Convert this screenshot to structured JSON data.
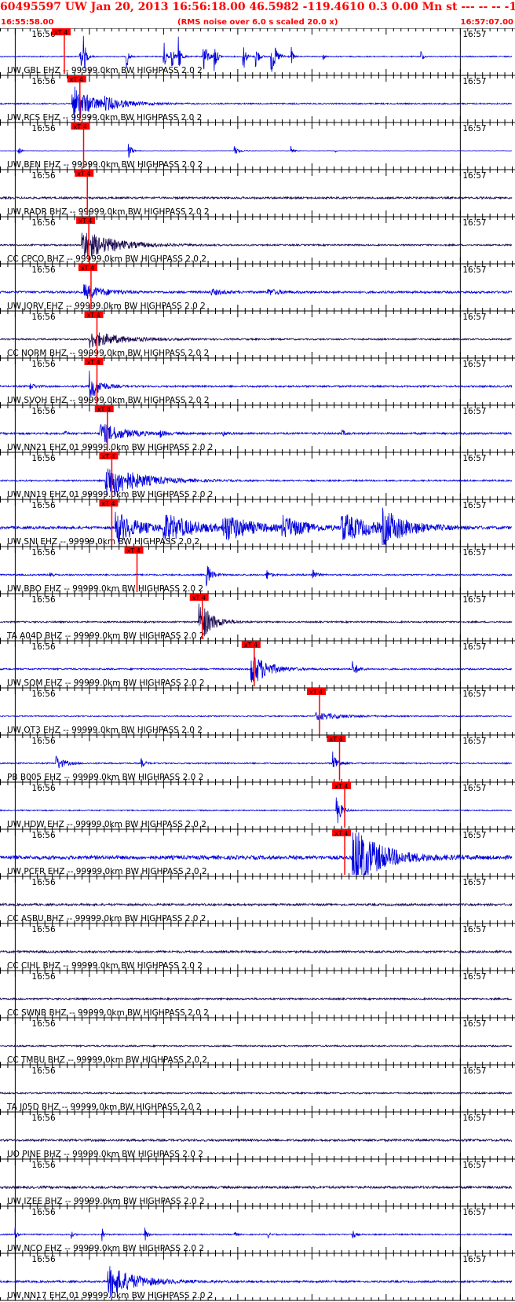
{
  "header": {
    "title": "60495597 UW Jan 20, 2013 16:56:18.00   46.5982 -119.4610  0.3 0.00 Mn st --- -- --  -1",
    "start_time": "16:55:58.00",
    "scale_note": "(RMS noise over 6.0 s scaled 20.0 x)",
    "end_time": "16:57:07.00"
  },
  "pick_label": "xT 4",
  "time_labels": {
    "left": "16:56",
    "right": "16:57"
  },
  "colors": {
    "blue": "#0000dd",
    "dark": "#1a0850",
    "red": "#ff0000"
  },
  "chart_data": {
    "type": "line",
    "x_range": [
      "16:55:58.00",
      "16:57:07.00"
    ],
    "grid": false,
    "series": [
      {
        "name": "UW GBL EHZ -- 99999.0km BW  HIGHPASS  2.0  2",
        "pick_s": 7.4,
        "color": "blue",
        "noise": 0.1,
        "events": [
          [
            10.7,
            0.3,
            4
          ],
          [
            11.2,
            0.3,
            4
          ],
          [
            17.0,
            0.2,
            4
          ],
          [
            22.0,
            0.3,
            4
          ],
          [
            23.0,
            0.3,
            4
          ],
          [
            24.0,
            0.3,
            4
          ],
          [
            27.3,
            0.5,
            4
          ],
          [
            28.8,
            0.3,
            4
          ],
          [
            32.7,
            0.3,
            4
          ],
          [
            34.4,
            0.3,
            4
          ],
          [
            36.5,
            0.6,
            4
          ],
          [
            39.2,
            0.2,
            2.5
          ],
          [
            43.5,
            0.2,
            1
          ],
          [
            56.7,
            0.2,
            2
          ]
        ]
      },
      {
        "name": "UW RCS EHZ -- 99999.0km BW  HIGHPASS  2.0  2",
        "pick_s": 9.5,
        "color": "blue",
        "noise": 0.12,
        "events": [
          [
            9.7,
            2.5,
            3.5
          ],
          [
            14.0,
            3.0,
            0.8
          ]
        ]
      },
      {
        "name": "UW BEN EHZ -- 99999.0km BW  HIGHPASS  2.0  2",
        "pick_s": 10.0,
        "color": "blue",
        "noise": 0.03,
        "events": [
          [
            2.4,
            0.3,
            1
          ],
          [
            17.3,
            0.4,
            1.8
          ],
          [
            31.5,
            0.6,
            1
          ],
          [
            39.2,
            0.3,
            1
          ],
          [
            45.2,
            0.1,
            0.4
          ]
        ]
      },
      {
        "name": "UW RADR BHZ -- 99999.0km BW  HIGHPASS  2.0  2",
        "pick_s": 10.5,
        "color": "dark",
        "noise": 0.18,
        "events": []
      },
      {
        "name": "CC CPCO BHZ -- 99999.0km BW  HIGHPASS  2.0  2",
        "pick_s": 10.7,
        "color": "dark",
        "noise": 0.14,
        "events": [
          [
            11.0,
            4.0,
            2.8
          ]
        ]
      },
      {
        "name": "UW JORV EHZ -- 99999.0km BW  HIGHPASS  2.0  2",
        "pick_s": 11.0,
        "color": "blue",
        "noise": 0.2,
        "events": [
          [
            11.3,
            2.5,
            1.4
          ],
          [
            28.3,
            1.5,
            0.6
          ],
          [
            36.0,
            1.5,
            0.6
          ]
        ]
      },
      {
        "name": "CC NORM BHZ -- 99999.0km BW  HIGHPASS  2.0  2",
        "pick_s": 11.8,
        "color": "dark",
        "noise": 0.14,
        "events": [
          [
            12.0,
            4.0,
            1.6
          ]
        ]
      },
      {
        "name": "UW SVOH EHZ -- 99999.0km BW  HIGHPASS  2.0  2",
        "pick_s": 11.8,
        "color": "blue",
        "noise": 0.16,
        "events": [
          [
            4.0,
            0.5,
            0.8
          ],
          [
            12.0,
            1.2,
            3.2
          ]
        ]
      },
      {
        "name": "UW NN21 EHZ 01 99999.0km BW  HIGHPASS  2.0  2",
        "pick_s": 13.2,
        "color": "blue",
        "noise": 0.18,
        "events": [
          [
            13.4,
            3.0,
            2.0
          ],
          [
            8.5,
            0.3,
            0.8
          ],
          [
            21.5,
            0.4,
            0.8
          ],
          [
            30.0,
            0.4,
            0.7
          ],
          [
            46.0,
            0.4,
            0.7
          ]
        ]
      },
      {
        "name": "UW NN19 EHZ 01 99999.0km BW  HIGHPASS  2.0  2",
        "pick_s": 13.8,
        "color": "blue",
        "noise": 0.14,
        "events": [
          [
            14.2,
            4.0,
            3.5
          ]
        ]
      },
      {
        "name": "UW SNI EHZ -- 99999.0km BW  HIGHPASS  2.0  2",
        "pick_s": 13.8,
        "color": "blue",
        "noise": 0.25,
        "events": [
          [
            15.5,
            3.0,
            3.0
          ],
          [
            22.0,
            4.0,
            2.5
          ],
          [
            30.0,
            3.5,
            2.5
          ],
          [
            38.0,
            3.0,
            2.0
          ],
          [
            46.0,
            4.0,
            2.5
          ],
          [
            51.5,
            3.0,
            3.0
          ]
        ]
      },
      {
        "name": "UW BBO EHZ -- 99999.0km BW  HIGHPASS  2.0  2",
        "pick_s": 17.2,
        "color": "blue",
        "noise": 0.14,
        "events": [
          [
            27.8,
            0.6,
            2.5
          ],
          [
            35.8,
            0.4,
            1.5
          ],
          [
            42.0,
            0.4,
            1.8
          ],
          [
            6.7,
            0.3,
            1
          ]
        ]
      },
      {
        "name": "TA A04D BHZ -- 99999.0km BW  HIGHPASS  2.0  2",
        "pick_s": 26.0,
        "color": "dark",
        "noise": 0.14,
        "events": [
          [
            26.8,
            1.5,
            4.5
          ]
        ]
      },
      {
        "name": "UW SQM EHZ -- 99999.0km BW  HIGHPASS  2.0  2",
        "pick_s": 33.0,
        "color": "blue",
        "noise": 0.14,
        "events": [
          [
            33.8,
            2.0,
            3.5
          ],
          [
            47.5,
            0.6,
            1.5
          ]
        ]
      },
      {
        "name": "UW OT3 EHZ -- 99999.0km BW  HIGHPASS  2.0  2",
        "pick_s": 41.8,
        "color": "blue",
        "noise": 0.1,
        "events": [
          [
            42.5,
            3.5,
            0.7
          ]
        ]
      },
      {
        "name": "PB B005 EHZ -- 99999.0km BW  HIGHPASS  2.0  2",
        "pick_s": 44.5,
        "color": "blue",
        "noise": 0.12,
        "events": [
          [
            7.5,
            1.0,
            1.5
          ],
          [
            19.0,
            0.4,
            1
          ],
          [
            44.8,
            0.6,
            2.5
          ]
        ]
      },
      {
        "name": "UW HDW EHZ -- 99999.0km BW  HIGHPASS  2.0  2",
        "pick_s": 45.2,
        "color": "blue",
        "noise": 0.1,
        "events": [
          [
            45.3,
            0.5,
            4.0
          ]
        ]
      },
      {
        "name": "UW PCFR EHZ -- 99999.0km BW  HIGHPASS  2.0  2",
        "pick_s": 45.2,
        "color": "blue",
        "noise": 0.35,
        "events": [
          [
            47.5,
            3.5,
            6
          ]
        ]
      },
      {
        "name": "CC ASBU BHZ -- 99999.0km BW  HIGHPASS  2.0  2",
        "pick_s": null,
        "color": "dark",
        "noise": 0.2,
        "events": []
      },
      {
        "name": "CC CIHL BHZ -- 99999.0km BW  HIGHPASS  2.0  2",
        "pick_s": null,
        "color": "dark",
        "noise": 0.2,
        "events": []
      },
      {
        "name": "CC SWNB BHZ -- 99999.0km BW  HIGHPASS  2.0  2",
        "pick_s": null,
        "color": "dark",
        "noise": 0.15,
        "events": []
      },
      {
        "name": "CC TMBU BHZ -- 99999.0km BW  HIGHPASS  2.0  2",
        "pick_s": null,
        "color": "dark",
        "noise": 0.14,
        "events": []
      },
      {
        "name": "TA J05D BHZ -- 99999.0km BW  HIGHPASS  2.0  2",
        "pick_s": null,
        "color": "dark",
        "noise": 0.14,
        "events": []
      },
      {
        "name": "UO PINE BHZ -- 99999.0km BW  HIGHPASS  2.0  2",
        "pick_s": null,
        "color": "dark",
        "noise": 0.2,
        "events": []
      },
      {
        "name": "UW IZEE BHZ -- 99999.0km BW  HIGHPASS  2.0  2",
        "pick_s": null,
        "color": "dark",
        "noise": 0.22,
        "events": []
      },
      {
        "name": "UW NCO EHZ -- 99999.0km BW  HIGHPASS  2.0  2",
        "pick_s": null,
        "color": "blue",
        "noise": 0.12,
        "events": [
          [
            2.0,
            0.2,
            1.5
          ],
          [
            9.5,
            0.2,
            1.2
          ],
          [
            13.7,
            0.2,
            1.8
          ],
          [
            19.5,
            0.3,
            1.3
          ],
          [
            31.5,
            0.2,
            1
          ],
          [
            36.0,
            0.2,
            1
          ],
          [
            47.5,
            0.3,
            1
          ]
        ]
      },
      {
        "name": "UW NN17 EHZ 01 99999.0km BW  HIGHPASS  2.0  2",
        "pick_s": null,
        "color": "blue",
        "noise": 0.18,
        "events": [
          [
            14.5,
            3.5,
            3.0
          ]
        ]
      }
    ]
  }
}
